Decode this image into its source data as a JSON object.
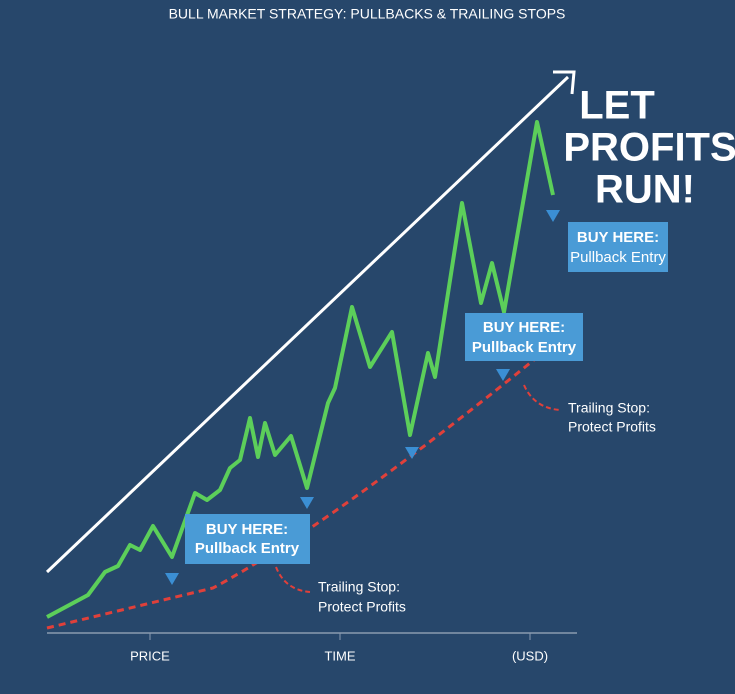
{
  "title": "BULL MARKET STRATEGY: PULLBACKS & TRAILING STOPS",
  "headline": [
    "LET",
    "PROFITS",
    "RUN!"
  ],
  "callouts": [
    {
      "line1": "BUY HERE:",
      "line2": "Pullback Entry"
    },
    {
      "line1": "BUY HERE:",
      "line2": "Pullback Entry"
    },
    {
      "line1": "BUY HERE:",
      "line2": "Pullback Entry"
    }
  ],
  "stop_notes": [
    {
      "line1": "Trailing Stop:",
      "line2": "Protect Profits"
    },
    {
      "line1": "Trailing Stop:",
      "line2": "Protect Profits"
    }
  ],
  "axis_labels": [
    "PRICE",
    "TIME",
    "(USD)"
  ]
}
